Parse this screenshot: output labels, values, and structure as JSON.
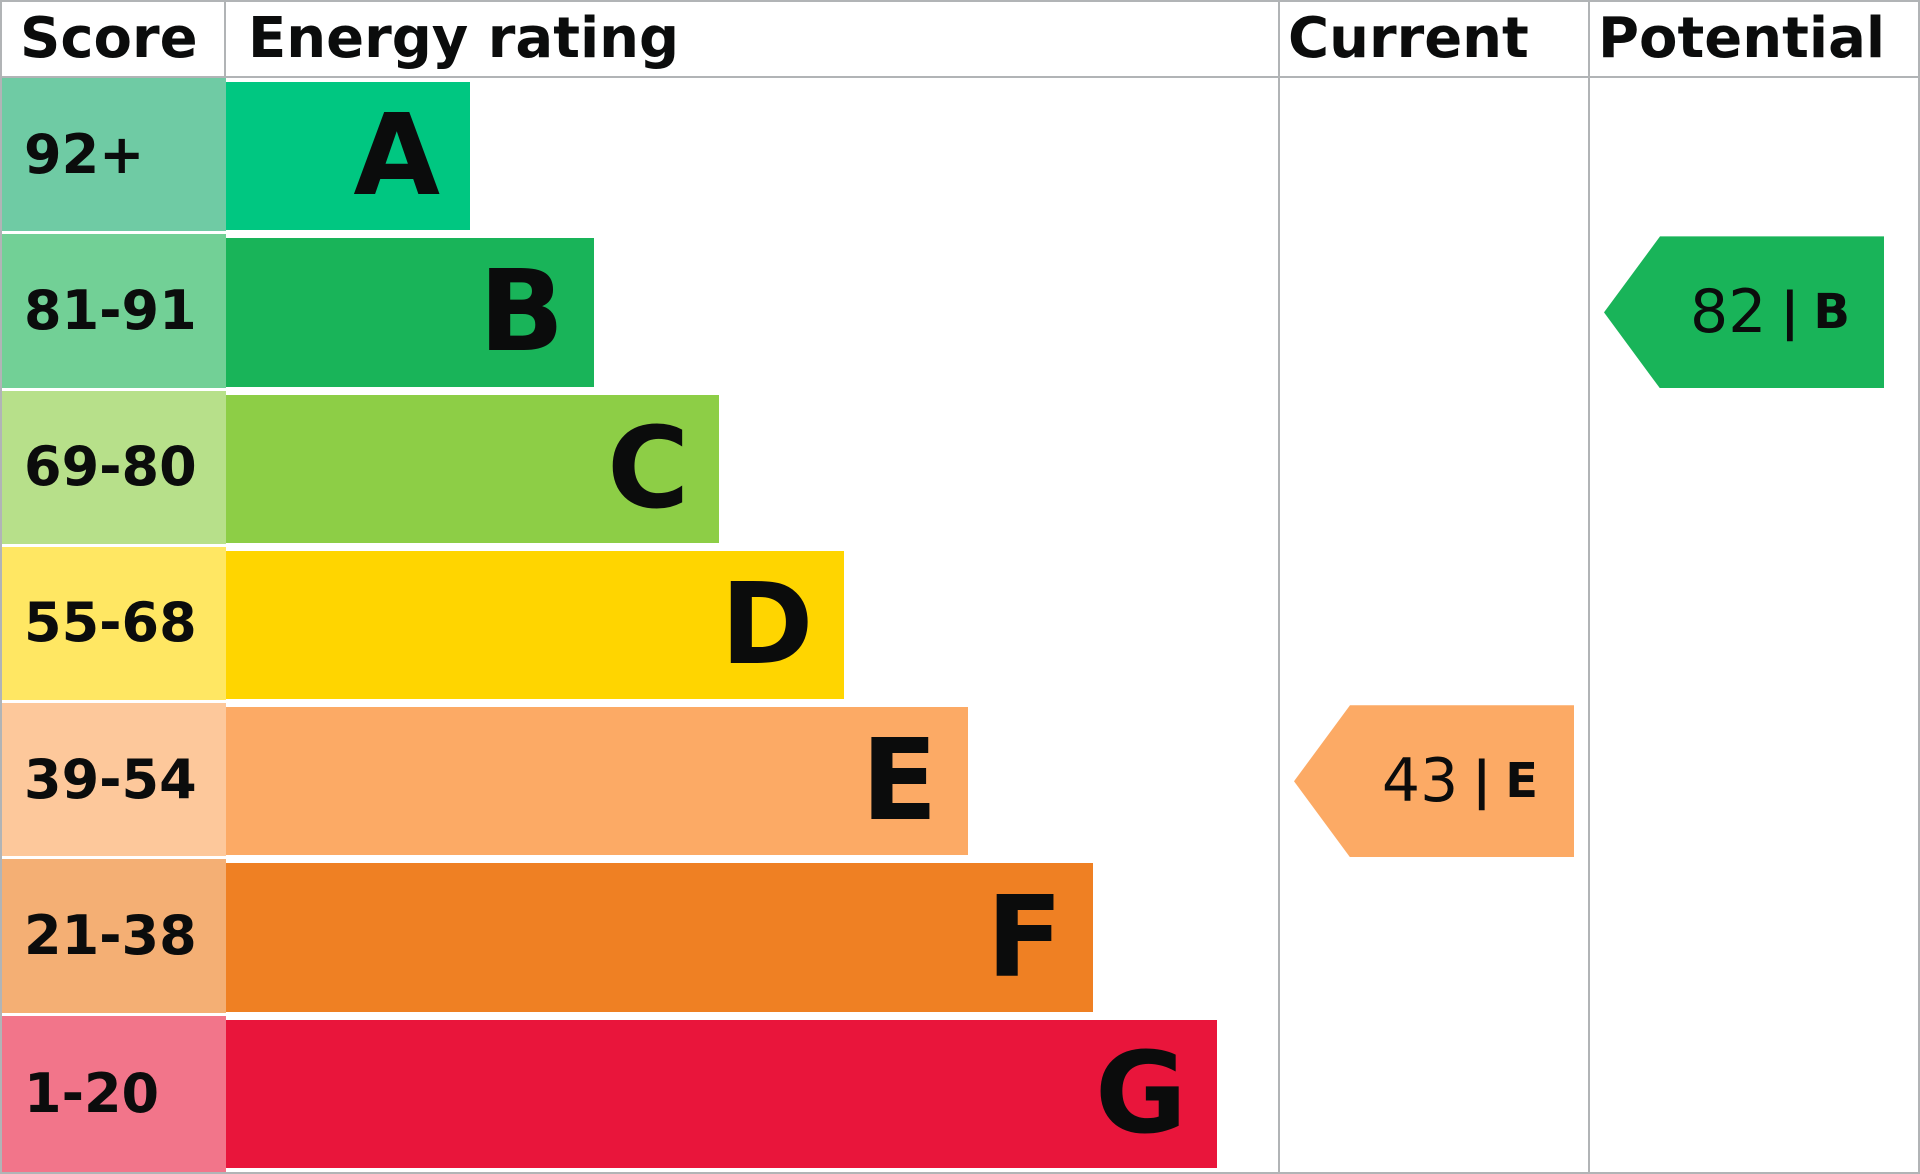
{
  "header": {
    "score": "Score",
    "rating": "Energy rating",
    "current": "Current",
    "potential": "Potential"
  },
  "bands": [
    {
      "score": "92+",
      "letter": "A",
      "color": "#00c781",
      "tint": "#6fcba4",
      "width": "23.2%"
    },
    {
      "score": "81-91",
      "letter": "B",
      "color": "#19b459",
      "tint": "#72d096",
      "width": "35.0%"
    },
    {
      "score": "69-80",
      "letter": "C",
      "color": "#8dce46",
      "tint": "#b7e08a",
      "width": "46.9%"
    },
    {
      "score": "55-68",
      "letter": "D",
      "color": "#ffd500",
      "tint": "#ffe763",
      "width": "58.7%"
    },
    {
      "score": "39-54",
      "letter": "E",
      "color": "#fcaa65",
      "tint": "#fdc89b",
      "width": "70.5%"
    },
    {
      "score": "21-38",
      "letter": "F",
      "color": "#ef8023",
      "tint": "#f4af74",
      "width": "82.4%"
    },
    {
      "score": "1-20",
      "letter": "G",
      "color": "#e9153b",
      "tint": "#f2758a",
      "width": "94.2%"
    }
  ],
  "current": {
    "value": "43",
    "separator": "|",
    "band": "E",
    "color": "#fcaa65"
  },
  "potential": {
    "value": "82",
    "separator": "|",
    "band": "B",
    "color": "#19b459"
  },
  "chart_data": {
    "type": "bar",
    "title": "Energy rating",
    "columns": [
      "Score",
      "Energy rating",
      "Current",
      "Potential"
    ],
    "categories": [
      "A",
      "B",
      "C",
      "D",
      "E",
      "F",
      "G"
    ],
    "score_ranges": [
      "92+",
      "81-91",
      "69-80",
      "55-68",
      "39-54",
      "21-38",
      "1-20"
    ],
    "bar_widths_pct": [
      23.2,
      35.0,
      46.9,
      58.7,
      70.5,
      82.4,
      94.2
    ],
    "bar_colors": [
      "#00c781",
      "#19b459",
      "#8dce46",
      "#ffd500",
      "#fcaa65",
      "#ef8023",
      "#e9153b"
    ],
    "current": {
      "score": 43,
      "band": "E"
    },
    "potential": {
      "score": 82,
      "band": "B"
    },
    "legend_position": "none",
    "grid": false
  }
}
